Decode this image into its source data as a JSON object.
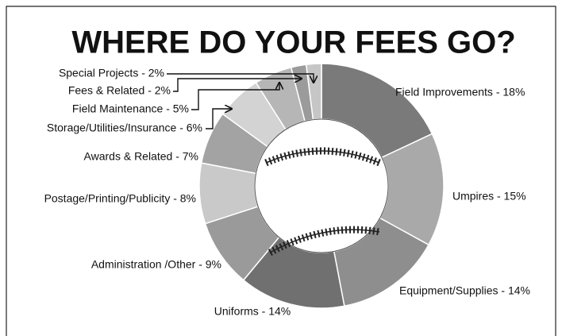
{
  "chart_data": {
    "type": "donut",
    "title": "WHERE DO YOUR FEES GO?",
    "categories": [
      "Field Improvements - 18%",
      "Umpires - 15%",
      "Equipment/Supplies - 14%",
      "Uniforms - 14%",
      "Administration /Other - 9%",
      "Postage/Printing/Publicity - 8%",
      "Awards & Related - 7%",
      "Storage/Utilities/Insurance - 6%",
      "Field Maintenance - 5%",
      "Fees & Related - 2%",
      "Special Projects - 2%"
    ],
    "values": [
      18,
      15,
      14,
      14,
      9,
      8,
      7,
      6,
      5,
      2,
      2
    ],
    "colors": [
      "#7a7a7a",
      "#a9a9a9",
      "#8e8e8e",
      "#707070",
      "#9a9a9a",
      "#c9c9c9",
      "#a3a3a3",
      "#d3d3d3",
      "#b6b6b6",
      "#9b9b9b",
      "#c6c6c6"
    ]
  }
}
